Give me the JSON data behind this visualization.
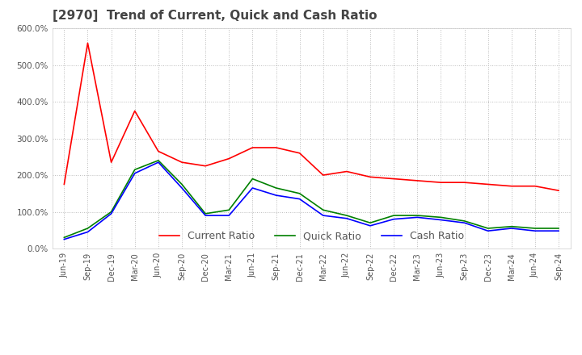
{
  "title": "[2970]  Trend of Current, Quick and Cash Ratio",
  "title_fontsize": 11,
  "title_color": "#444444",
  "background_color": "#ffffff",
  "plot_background": "#ffffff",
  "grid_color": "#bbbbbb",
  "xlabels": [
    "Jun-19",
    "Sep-19",
    "Dec-19",
    "Mar-20",
    "Jun-20",
    "Sep-20",
    "Dec-20",
    "Mar-21",
    "Jun-21",
    "Sep-21",
    "Dec-21",
    "Mar-22",
    "Jun-22",
    "Sep-22",
    "Dec-22",
    "Mar-23",
    "Jun-23",
    "Sep-23",
    "Dec-23",
    "Mar-24",
    "Jun-24",
    "Sep-24"
  ],
  "current_ratio": [
    175,
    560,
    235,
    375,
    265,
    235,
    225,
    245,
    275,
    275,
    260,
    200,
    210,
    195,
    190,
    185,
    180,
    180,
    175,
    170,
    170,
    158
  ],
  "quick_ratio": [
    30,
    55,
    100,
    215,
    240,
    175,
    95,
    105,
    190,
    165,
    150,
    105,
    90,
    70,
    90,
    90,
    85,
    75,
    55,
    60,
    55,
    55
  ],
  "cash_ratio": [
    25,
    45,
    95,
    205,
    235,
    165,
    90,
    90,
    165,
    145,
    135,
    90,
    82,
    62,
    80,
    85,
    78,
    70,
    48,
    55,
    48,
    48
  ],
  "current_color": "#ff0000",
  "quick_color": "#008000",
  "cash_color": "#0000ff",
  "ylim": [
    0,
    600
  ],
  "yticks": [
    0,
    100,
    200,
    300,
    400,
    500,
    600
  ],
  "line_width": 1.2,
  "legend_labels": [
    "Current Ratio",
    "Quick Ratio",
    "Cash Ratio"
  ]
}
